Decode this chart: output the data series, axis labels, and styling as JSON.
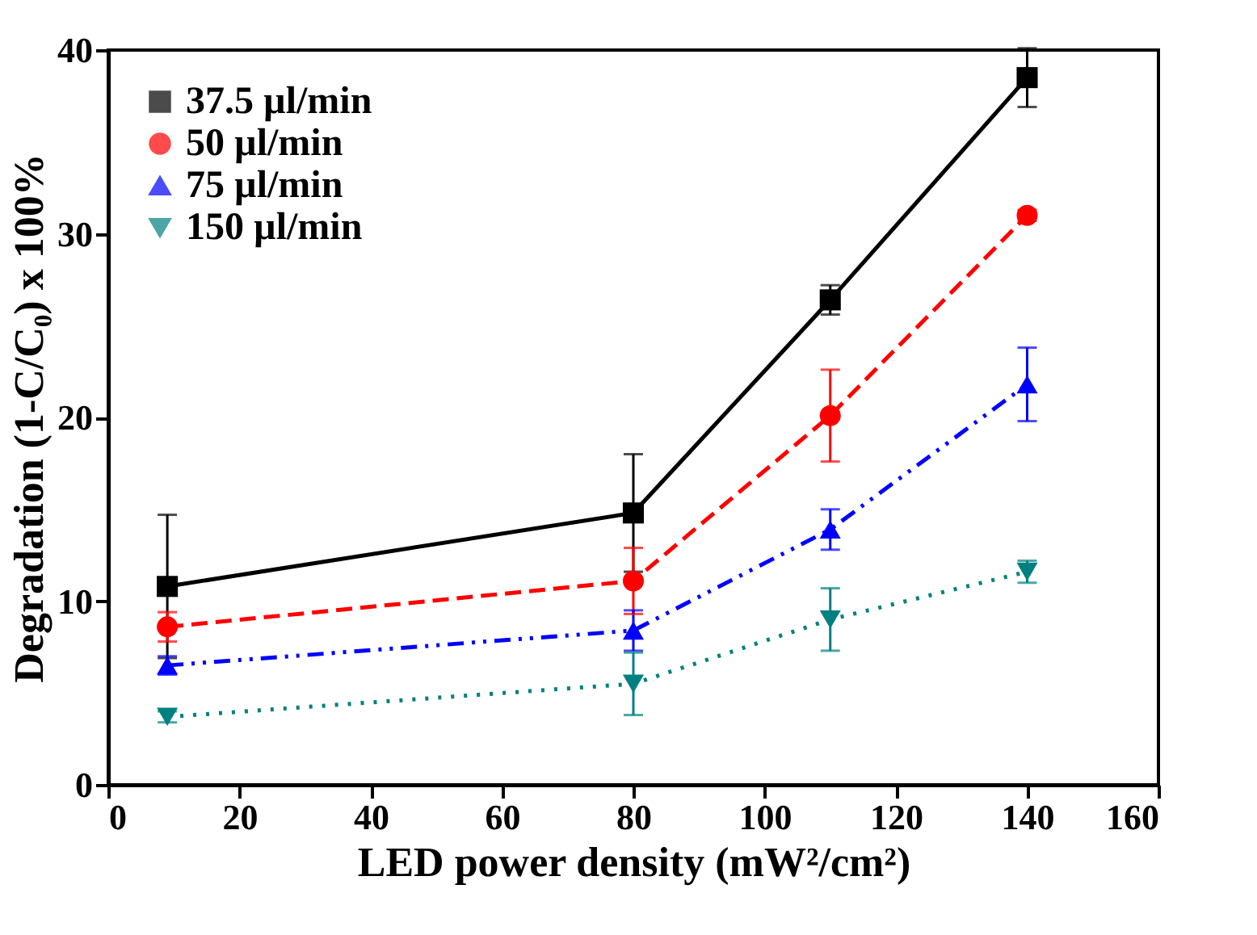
{
  "chart_data": {
    "type": "line",
    "xlabel": "LED power density (mW²/cm²)",
    "ylabel": "Degradation (1-C/C₀) x 100%",
    "x": [
      9,
      80,
      110,
      140
    ],
    "xlim": [
      0,
      160
    ],
    "xticks": [
      0,
      20,
      40,
      60,
      80,
      100,
      120,
      140,
      160
    ],
    "ylim": [
      0,
      40
    ],
    "yticks": [
      0,
      10,
      20,
      30,
      40
    ],
    "grid": false,
    "legend": "top left",
    "series": [
      {
        "name": "37.5 µl/min",
        "color": "#000000",
        "marker": "square",
        "line_style": "solid",
        "values": [
          10.8,
          14.8,
          26.4,
          38.5
        ],
        "errors": [
          3.9,
          3.2,
          0.8,
          1.6
        ]
      },
      {
        "name": "50 µl/min",
        "color": "#ff0000",
        "marker": "circle",
        "line_style": "dashed",
        "values": [
          8.6,
          11.1,
          20.1,
          31.0
        ],
        "errors": [
          0.8,
          1.8,
          2.5,
          0.3
        ]
      },
      {
        "name": "75 µl/min",
        "color": "#0000ff",
        "marker": "triangle",
        "line_style": "dashdot",
        "values": [
          6.5,
          8.4,
          13.9,
          21.8
        ],
        "errors": [
          0.5,
          1.1,
          1.1,
          2.0
        ]
      },
      {
        "name": "150 µl/min",
        "color": "#008080",
        "marker": "triangle-down",
        "line_style": "dotted",
        "values": [
          3.7,
          5.5,
          9.0,
          11.6
        ],
        "errors": [
          0.3,
          1.7,
          1.7,
          0.6
        ]
      }
    ]
  }
}
